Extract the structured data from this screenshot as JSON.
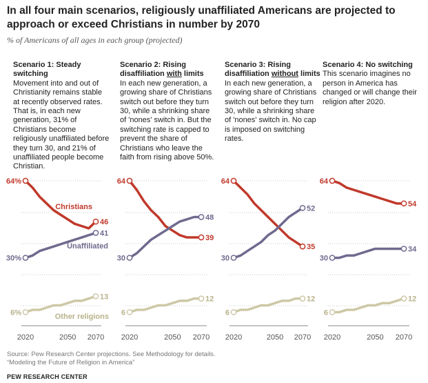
{
  "title": "In all four main scenarios, religiously unaffiliated Americans are projected to approach or exceed Christians in number by 2070",
  "subtitle": "% of Americans of all ages in each group (projected)",
  "colors": {
    "christians": "#c0392b",
    "unaffiliated": "#6e6a8e",
    "other": "#cdc8a6",
    "grid": "#c8c8c8"
  },
  "panels": [
    {
      "title_pre": "Scenario 1: Steady switching",
      "title_u": "",
      "title_post": "",
      "desc": "Movement into and out of Christianity remains stable at recently observed rates. That is, in each new generation, 31% of Christians become religiously unaffiliated before they turn 30, and 21% of unaffiliated people become Christian."
    },
    {
      "title_pre": "Scenario 2: Rising disaffiliation ",
      "title_u": "with",
      "title_post": " limits",
      "desc": "In each new generation, a growing share of Christians switch out before they turn 30, while a shrinking share of 'nones' switch in. But the switching rate is capped to prevent the share of Christians who leave the faith from rising above 50%."
    },
    {
      "title_pre": "Scenario 3: Rising disaffiliation ",
      "title_u": "without",
      "title_post": " limits",
      "desc": "In each new generation, a growing share of Christians switch out before they turn 30, while a shrinking share of 'nones' switch in. No cap is imposed on switching rates."
    },
    {
      "title_pre": "Scenario 4: No switching",
      "title_u": "",
      "title_post": "",
      "desc": "This scenario imagines no person in America has changed or will change their religion after 2020."
    }
  ],
  "chart_data": [
    {
      "type": "line",
      "x_ticks": [
        "2020",
        "2050",
        "2070"
      ],
      "ylim": [
        0,
        70
      ],
      "series": [
        {
          "name": "Christians",
          "key": "christians",
          "x": [
            2020,
            2025,
            2030,
            2035,
            2040,
            2045,
            2050,
            2055,
            2060,
            2065,
            2070
          ],
          "values": [
            64,
            61,
            57,
            54,
            51,
            49,
            47,
            45,
            44,
            43,
            46
          ],
          "start_label": "64%",
          "end_label": "46"
        },
        {
          "name": "Unaffiliated",
          "key": "unaffiliated",
          "x": [
            2020,
            2025,
            2030,
            2035,
            2040,
            2045,
            2050,
            2055,
            2060,
            2065,
            2070
          ],
          "values": [
            30,
            31,
            33,
            34,
            35,
            36,
            37,
            38,
            39,
            40,
            41
          ],
          "start_label": "30%",
          "end_label": "41"
        },
        {
          "name": "Other religions",
          "key": "other",
          "x": [
            2020,
            2025,
            2030,
            2035,
            2040,
            2045,
            2050,
            2055,
            2060,
            2065,
            2070
          ],
          "values": [
            6,
            7,
            7,
            8,
            9,
            9,
            10,
            11,
            11,
            12,
            13
          ],
          "start_label": "6%",
          "end_label": "13"
        }
      ]
    },
    {
      "type": "line",
      "x_ticks": [
        "2020",
        "2050",
        "2070"
      ],
      "ylim": [
        0,
        70
      ],
      "series": [
        {
          "name": "Christians",
          "key": "christians",
          "x": [
            2020,
            2025,
            2030,
            2035,
            2040,
            2045,
            2050,
            2055,
            2060,
            2065,
            2070
          ],
          "values": [
            64,
            60,
            55,
            51,
            48,
            44,
            42,
            40,
            39,
            39,
            39
          ],
          "start_label": "64",
          "end_label": "39"
        },
        {
          "name": "Unaffiliated",
          "key": "unaffiliated",
          "x": [
            2020,
            2025,
            2030,
            2035,
            2040,
            2045,
            2050,
            2055,
            2060,
            2065,
            2070
          ],
          "values": [
            30,
            32,
            35,
            38,
            40,
            42,
            44,
            46,
            47,
            48,
            48
          ],
          "start_label": "30",
          "end_label": "48"
        },
        {
          "name": "Other religions",
          "key": "other",
          "x": [
            2020,
            2025,
            2030,
            2035,
            2040,
            2045,
            2050,
            2055,
            2060,
            2065,
            2070
          ],
          "values": [
            6,
            7,
            7,
            8,
            9,
            9,
            10,
            11,
            11,
            12,
            12
          ],
          "start_label": "6",
          "end_label": "12"
        }
      ]
    },
    {
      "type": "line",
      "x_ticks": [
        "2020",
        "2050",
        "2070"
      ],
      "ylim": [
        0,
        70
      ],
      "series": [
        {
          "name": "Christians",
          "key": "christians",
          "x": [
            2020,
            2025,
            2030,
            2035,
            2040,
            2045,
            2050,
            2055,
            2060,
            2065,
            2070
          ],
          "values": [
            64,
            61,
            58,
            54,
            51,
            48,
            45,
            42,
            39,
            37,
            35
          ],
          "start_label": "64",
          "end_label": "35"
        },
        {
          "name": "Unaffiliated",
          "key": "unaffiliated",
          "x": [
            2020,
            2025,
            2030,
            2035,
            2040,
            2045,
            2050,
            2055,
            2060,
            2065,
            2070
          ],
          "values": [
            30,
            31,
            33,
            35,
            37,
            40,
            42,
            45,
            48,
            50,
            52
          ],
          "start_label": "30",
          "end_label": "52"
        },
        {
          "name": "Other religions",
          "key": "other",
          "x": [
            2020,
            2025,
            2030,
            2035,
            2040,
            2045,
            2050,
            2055,
            2060,
            2065,
            2070
          ],
          "values": [
            6,
            7,
            7,
            8,
            9,
            9,
            10,
            11,
            11,
            12,
            12
          ],
          "start_label": "6",
          "end_label": "12"
        }
      ]
    },
    {
      "type": "line",
      "x_ticks": [
        "2020",
        "2050",
        "2070"
      ],
      "ylim": [
        0,
        70
      ],
      "series": [
        {
          "name": "Christians",
          "key": "christians",
          "x": [
            2020,
            2025,
            2030,
            2035,
            2040,
            2045,
            2050,
            2055,
            2060,
            2065,
            2070
          ],
          "values": [
            64,
            63,
            61,
            60,
            59,
            58,
            57,
            56,
            55,
            54,
            54
          ],
          "start_label": "64",
          "end_label": "54"
        },
        {
          "name": "Unaffiliated",
          "key": "unaffiliated",
          "x": [
            2020,
            2025,
            2030,
            2035,
            2040,
            2045,
            2050,
            2055,
            2060,
            2065,
            2070
          ],
          "values": [
            30,
            30,
            31,
            31,
            32,
            33,
            34,
            34,
            34,
            34,
            34
          ],
          "start_label": "30",
          "end_label": "34"
        },
        {
          "name": "Other religions",
          "key": "other",
          "x": [
            2020,
            2025,
            2030,
            2035,
            2040,
            2045,
            2050,
            2055,
            2060,
            2065,
            2070
          ],
          "values": [
            6,
            6,
            7,
            7,
            8,
            9,
            9,
            10,
            10,
            11,
            12
          ],
          "start_label": "6",
          "end_label": "12"
        }
      ]
    }
  ],
  "series_labels": {
    "christians": "Christians",
    "unaffiliated": "Unaffiliated",
    "other": "Other religions"
  },
  "source_line1": "Source: Pew Research Center projections. See Methodology for details.",
  "source_line2": "“Modeling the Future of Religion in America”",
  "brand": "PEW RESEARCH CENTER"
}
